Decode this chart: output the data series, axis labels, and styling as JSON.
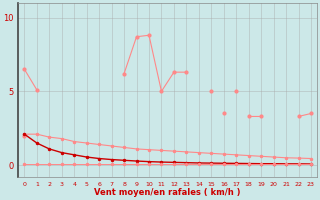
{
  "x": [
    0,
    1,
    2,
    3,
    4,
    5,
    6,
    7,
    8,
    9,
    10,
    11,
    12,
    13,
    14,
    15,
    16,
    17,
    18,
    19,
    20,
    21,
    22,
    23
  ],
  "line_upper": [
    6.5,
    5.1,
    null,
    null,
    null,
    null,
    null,
    null,
    6.2,
    8.7,
    8.8,
    5.0,
    6.3,
    6.3,
    null,
    5.0,
    null,
    5.0,
    null,
    null,
    null,
    null,
    null,
    null
  ],
  "line_mid_rise": [
    2.0,
    null,
    null,
    null,
    null,
    null,
    null,
    null,
    null,
    null,
    null,
    null,
    null,
    null,
    null,
    null,
    3.5,
    null,
    3.3,
    3.3,
    null,
    null,
    3.3,
    3.5
  ],
  "line_mid_dec": [
    2.1,
    2.1,
    1.9,
    1.8,
    1.6,
    1.5,
    1.4,
    1.3,
    1.2,
    1.1,
    1.05,
    1.0,
    0.95,
    0.9,
    0.85,
    0.8,
    0.75,
    0.7,
    0.65,
    0.6,
    0.55,
    0.5,
    0.48,
    0.45
  ],
  "line_dark_dec": [
    2.1,
    1.5,
    1.1,
    0.85,
    0.7,
    0.55,
    0.45,
    0.38,
    0.33,
    0.28,
    0.24,
    0.21,
    0.19,
    0.17,
    0.15,
    0.14,
    0.13,
    0.12,
    0.11,
    0.1,
    0.1,
    0.09,
    0.09,
    0.08
  ],
  "line_bottom": [
    0.05,
    0.05,
    0.05,
    0.05,
    0.05,
    0.05,
    0.05,
    0.05,
    0.05,
    0.05,
    0.05,
    0.05,
    0.05,
    0.05,
    0.05,
    0.05,
    0.05,
    0.05,
    0.05,
    0.05,
    0.05,
    0.05,
    0.05,
    0.05
  ],
  "bg_color": "#cce8e8",
  "grid_color": "#aaaaaa",
  "line_color_dark": "#cc0000",
  "line_color_light": "#ff8888",
  "xlabel": "Vent moyen/en rafales ( km/h )",
  "yticks": [
    0,
    5,
    10
  ],
  "xlim": [
    -0.5,
    23.5
  ],
  "ylim": [
    -0.8,
    11.0
  ]
}
